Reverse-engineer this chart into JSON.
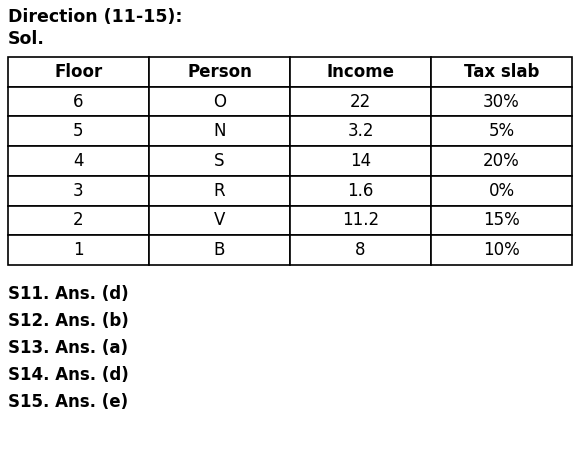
{
  "title_line1": "Direction (11-15):",
  "title_line2": "Sol.",
  "col_headers": [
    "Floor",
    "Person",
    "Income",
    "Tax slab"
  ],
  "rows": [
    [
      "6",
      "O",
      "22",
      "30%"
    ],
    [
      "5",
      "N",
      "3.2",
      "5%"
    ],
    [
      "4",
      "S",
      "14",
      "20%"
    ],
    [
      "3",
      "R",
      "1.6",
      "0%"
    ],
    [
      "2",
      "V",
      "11.2",
      "15%"
    ],
    [
      "1",
      "B",
      "8",
      "10%"
    ]
  ],
  "answers": [
    "S11. Ans. (d)",
    "S12. Ans. (b)",
    "S13. Ans. (a)",
    "S14. Ans. (d)",
    "S15. Ans. (e)"
  ],
  "bg_color": "#ffffff",
  "text_color": "#000000",
  "title_fontsize": 12.5,
  "header_fontsize": 12,
  "cell_fontsize": 12,
  "answer_fontsize": 12
}
